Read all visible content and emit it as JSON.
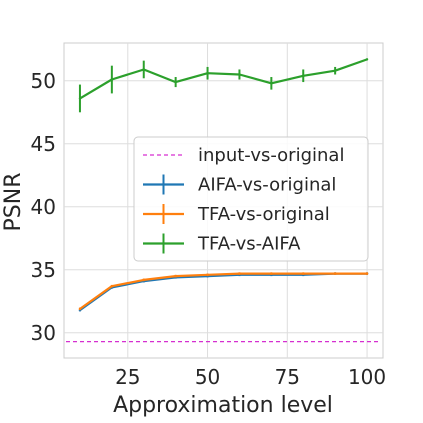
{
  "chart_data": {
    "type": "line",
    "title": "",
    "xlabel": "Approximation level",
    "ylabel": "PSNR",
    "xlim": [
      5,
      105
    ],
    "ylim": [
      28,
      53
    ],
    "xticks": [
      25,
      50,
      75,
      100
    ],
    "yticks": [
      30,
      35,
      40,
      45,
      50
    ],
    "grid": true,
    "legend_position": "center-right",
    "x": [
      10,
      20,
      30,
      40,
      50,
      60,
      70,
      80,
      90,
      100
    ],
    "series": [
      {
        "name": "input-vs-original",
        "style": "dashed",
        "color": "#d62fd0",
        "values": [
          29.3,
          29.3,
          29.3,
          29.3,
          29.3,
          29.3,
          29.3,
          29.3,
          29.3,
          29.3
        ],
        "errors": [
          0,
          0,
          0,
          0,
          0,
          0,
          0,
          0,
          0,
          0
        ]
      },
      {
        "name": "AIFA-vs-original",
        "style": "solid",
        "color": "#1f77b4",
        "values": [
          31.8,
          33.6,
          34.1,
          34.4,
          34.5,
          34.6,
          34.6,
          34.6,
          34.7,
          34.7
        ],
        "errors": [
          0.1,
          0.1,
          0.1,
          0.1,
          0.1,
          0.1,
          0.1,
          0.1,
          0.1,
          0.1
        ]
      },
      {
        "name": "TFA-vs-original",
        "style": "solid",
        "color": "#ff7f0e",
        "values": [
          31.9,
          33.7,
          34.2,
          34.5,
          34.6,
          34.7,
          34.7,
          34.7,
          34.7,
          34.7
        ],
        "errors": [
          0.1,
          0.1,
          0.1,
          0.1,
          0.1,
          0.1,
          0.1,
          0.1,
          0.1,
          0.1
        ]
      },
      {
        "name": "TFA-vs-AIFA",
        "style": "solid",
        "color": "#2ca02c",
        "values": [
          48.6,
          50.1,
          50.9,
          49.9,
          50.6,
          50.5,
          49.8,
          50.4,
          50.8,
          51.7
        ],
        "errors": [
          1.1,
          1.1,
          0.7,
          0.4,
          0.5,
          0.4,
          0.5,
          0.5,
          0.3,
          0
        ]
      }
    ]
  }
}
